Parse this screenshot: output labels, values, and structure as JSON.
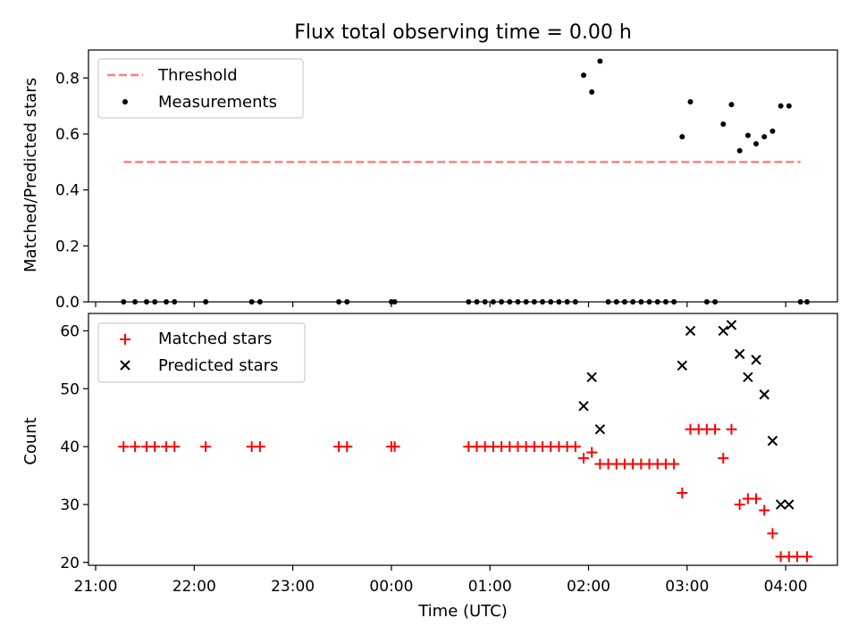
{
  "chart_data": [
    {
      "type": "scatter",
      "title": "Flux total observing time = 0.00 h",
      "xlabel": "",
      "ylabel": "Matched/Predicted stars",
      "ylim": [
        0,
        0.9
      ],
      "xlim": [
        "21:00",
        "04:00"
      ],
      "yticks": [
        "0.0",
        "0.2",
        "0.4",
        "0.6",
        "0.8"
      ],
      "ytick_values": [
        0,
        0.2,
        0.4,
        0.6,
        0.8
      ],
      "grid": false,
      "legend_position": "top-left",
      "legend": [
        {
          "label": "Threshold",
          "color": "#ff8080",
          "style": "dashed-line"
        },
        {
          "label": "Measurements",
          "color": "#000000",
          "style": "dot"
        }
      ],
      "threshold": {
        "value": 0.5,
        "x_range": [
          "21:17",
          "04:09"
        ]
      },
      "series": [
        {
          "name": "Measurements",
          "color": "#000000",
          "marker": "dot",
          "points": [
            [
              "21:17",
              0
            ],
            [
              "21:24",
              0
            ],
            [
              "21:31",
              0
            ],
            [
              "21:36",
              0
            ],
            [
              "21:43",
              0
            ],
            [
              "21:48",
              0
            ],
            [
              "22:07",
              0
            ],
            [
              "22:35",
              0
            ],
            [
              "22:40",
              0
            ],
            [
              "23:28",
              0
            ],
            [
              "23:33",
              0
            ],
            [
              "00:00",
              0
            ],
            [
              "00:02",
              0
            ],
            [
              "00:47",
              0
            ],
            [
              "00:52",
              0
            ],
            [
              "00:57",
              0
            ],
            [
              "01:02",
              0
            ],
            [
              "01:07",
              0
            ],
            [
              "01:12",
              0
            ],
            [
              "01:17",
              0
            ],
            [
              "01:22",
              0
            ],
            [
              "01:27",
              0
            ],
            [
              "01:32",
              0
            ],
            [
              "01:37",
              0
            ],
            [
              "01:42",
              0
            ],
            [
              "01:47",
              0
            ],
            [
              "01:52",
              0
            ],
            [
              "02:12",
              0
            ],
            [
              "02:17",
              0
            ],
            [
              "02:22",
              0
            ],
            [
              "02:27",
              0
            ],
            [
              "02:32",
              0
            ],
            [
              "02:37",
              0
            ],
            [
              "02:42",
              0
            ],
            [
              "02:47",
              0
            ],
            [
              "02:52",
              0
            ],
            [
              "03:12",
              0
            ],
            [
              "03:17",
              0
            ],
            [
              "04:09",
              0
            ],
            [
              "04:13",
              0
            ],
            [
              "01:57",
              0.81
            ],
            [
              "02:02",
              0.75
            ],
            [
              "02:07",
              0.86
            ],
            [
              "02:57",
              0.59
            ],
            [
              "03:02",
              0.715
            ],
            [
              "03:22",
              0.635
            ],
            [
              "03:27",
              0.705
            ],
            [
              "03:32",
              0.54
            ],
            [
              "03:37",
              0.595
            ],
            [
              "03:42",
              0.565
            ],
            [
              "03:47",
              0.59
            ],
            [
              "03:52",
              0.61
            ],
            [
              "03:57",
              0.7
            ],
            [
              "04:02",
              0.7
            ]
          ]
        }
      ]
    },
    {
      "type": "scatter",
      "title": "",
      "xlabel": "Time (UTC)",
      "ylabel": "Count",
      "ylim": [
        19.5,
        63
      ],
      "xlim": [
        "21:00",
        "04:00"
      ],
      "yticks": [
        "20",
        "30",
        "40",
        "50",
        "60"
      ],
      "ytick_values": [
        20,
        30,
        40,
        50,
        60
      ],
      "xticks": [
        "21:00",
        "22:00",
        "23:00",
        "00:00",
        "01:00",
        "02:00",
        "03:00",
        "04:00"
      ],
      "grid": false,
      "legend_position": "top-left",
      "legend": [
        {
          "label": "Matched stars",
          "color": "#ff0000",
          "style": "plus"
        },
        {
          "label": "Predicted stars",
          "color": "#000000",
          "style": "cross"
        }
      ],
      "series": [
        {
          "name": "Matched stars",
          "color": "#ff0000",
          "marker": "plus",
          "points": [
            [
              "21:17",
              40
            ],
            [
              "21:24",
              40
            ],
            [
              "21:31",
              40
            ],
            [
              "21:36",
              40
            ],
            [
              "21:43",
              40
            ],
            [
              "21:48",
              40
            ],
            [
              "22:07",
              40
            ],
            [
              "22:35",
              40
            ],
            [
              "22:40",
              40
            ],
            [
              "23:28",
              40
            ],
            [
              "23:33",
              40
            ],
            [
              "00:00",
              40
            ],
            [
              "00:02",
              40
            ],
            [
              "00:47",
              40
            ],
            [
              "00:52",
              40
            ],
            [
              "00:57",
              40
            ],
            [
              "01:02",
              40
            ],
            [
              "01:07",
              40
            ],
            [
              "01:12",
              40
            ],
            [
              "01:17",
              40
            ],
            [
              "01:22",
              40
            ],
            [
              "01:27",
              40
            ],
            [
              "01:32",
              40
            ],
            [
              "01:37",
              40
            ],
            [
              "01:42",
              40
            ],
            [
              "01:47",
              40
            ],
            [
              "01:52",
              40
            ],
            [
              "01:57",
              38
            ],
            [
              "02:02",
              39
            ],
            [
              "02:07",
              37
            ],
            [
              "02:12",
              37
            ],
            [
              "02:17",
              37
            ],
            [
              "02:22",
              37
            ],
            [
              "02:27",
              37
            ],
            [
              "02:32",
              37
            ],
            [
              "02:37",
              37
            ],
            [
              "02:42",
              37
            ],
            [
              "02:47",
              37
            ],
            [
              "02:52",
              37
            ],
            [
              "02:57",
              32
            ],
            [
              "03:02",
              43
            ],
            [
              "03:07",
              43
            ],
            [
              "03:12",
              43
            ],
            [
              "03:17",
              43
            ],
            [
              "03:22",
              38
            ],
            [
              "03:27",
              43
            ],
            [
              "03:32",
              30
            ],
            [
              "03:37",
              31
            ],
            [
              "03:42",
              31
            ],
            [
              "03:47",
              29
            ],
            [
              "03:52",
              25
            ],
            [
              "03:57",
              21
            ],
            [
              "04:02",
              21
            ],
            [
              "04:07",
              21
            ],
            [
              "04:13",
              21
            ]
          ]
        },
        {
          "name": "Predicted stars",
          "color": "#000000",
          "marker": "cross",
          "points": [
            [
              "01:57",
              47
            ],
            [
              "02:02",
              52
            ],
            [
              "02:07",
              43
            ],
            [
              "02:57",
              54
            ],
            [
              "03:02",
              60
            ],
            [
              "03:22",
              60
            ],
            [
              "03:27",
              61
            ],
            [
              "03:32",
              56
            ],
            [
              "03:37",
              52
            ],
            [
              "03:42",
              55
            ],
            [
              "03:47",
              49
            ],
            [
              "03:52",
              41
            ],
            [
              "03:57",
              30
            ],
            [
              "04:02",
              30
            ]
          ]
        }
      ]
    }
  ]
}
